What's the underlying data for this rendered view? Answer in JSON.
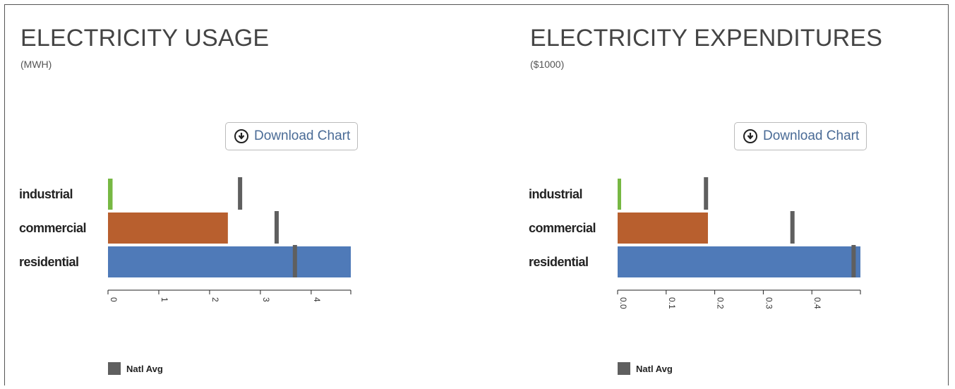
{
  "charts": [
    {
      "title": "ELECTRICITY USAGE",
      "subtitle": "(MWH)",
      "download_label": "Download Chart",
      "legend_label": "Natl Avg"
    },
    {
      "title": "ELECTRICITY EXPENDITURES",
      "subtitle": "($1000)",
      "download_label": "Download Chart",
      "legend_label": "Natl Avg"
    }
  ],
  "chart_data": [
    {
      "type": "bar",
      "title": "ELECTRICITY USAGE",
      "subtitle": "(MWH)",
      "categories": [
        "industrial",
        "commercial",
        "residential"
      ],
      "values": [
        0.09,
        2.36,
        4.78
      ],
      "natl_avg": [
        2.6,
        3.32,
        3.68
      ],
      "colors": [
        "#77b843",
        "#b85f2e",
        "#4f7ab8"
      ],
      "natl_avg_color": "#5f5f5f",
      "orientation": "horizontal",
      "xlim": [
        0,
        4.78
      ],
      "xticks": [
        0,
        1,
        2,
        3,
        4
      ],
      "xtick_labels": [
        "0",
        "1",
        "2",
        "3",
        "4"
      ],
      "legend": [
        "Natl Avg"
      ],
      "legend_position": "bottom-left"
    },
    {
      "type": "bar",
      "title": "ELECTRICITY EXPENDITURES",
      "subtitle": "($1000)",
      "categories": [
        "industrial",
        "commercial",
        "residential"
      ],
      "values": [
        0.004,
        0.186,
        0.5
      ],
      "natl_avg": [
        0.182,
        0.36,
        0.486
      ],
      "colors": [
        "#77b843",
        "#b85f2e",
        "#4f7ab8"
      ],
      "natl_avg_color": "#5f5f5f",
      "orientation": "horizontal",
      "xlim": [
        0,
        0.5
      ],
      "xticks": [
        0,
        0.1,
        0.2,
        0.3,
        0.4
      ],
      "xtick_labels": [
        "0.0",
        "0.1",
        "0.2",
        "0.3",
        "0.4"
      ],
      "legend": [
        "Natl Avg"
      ],
      "legend_position": "bottom-left"
    }
  ]
}
